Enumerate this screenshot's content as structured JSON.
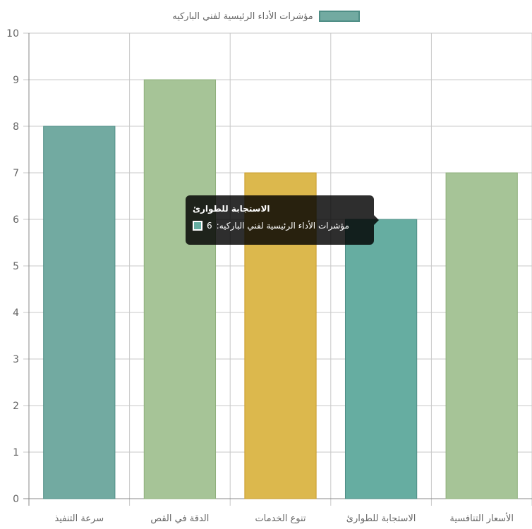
{
  "chart_data": {
    "type": "bar",
    "legend_position": "top",
    "grid": true,
    "series": [
      {
        "name": "مؤشرات الأداء الرئيسية لفني الباركيه",
        "values": [
          8,
          9,
          7,
          6,
          7
        ]
      }
    ],
    "categories": [
      "سرعة التنفيذ",
      "الدقة في القص",
      "تنوع الخدمات",
      "الاستجابة للطوارئ",
      "الأسعار التنافسية"
    ],
    "bar_colors": [
      "#72aaa1",
      "#a6c497",
      "#dcb84d",
      "#66ada1",
      "#a6c497"
    ],
    "bar_borders": [
      "#4f8e86",
      "#8fb07c",
      "#c99e2e",
      "#4f8e86",
      "#8fb07c"
    ],
    "ylim": [
      0,
      10
    ],
    "yticks": [
      0,
      1,
      2,
      3,
      4,
      5,
      6,
      7,
      8,
      9,
      10
    ],
    "xlabel": "",
    "ylabel": ""
  },
  "legend": {
    "label": "مؤشرات الأداء الرئيسية لفني الباركيه",
    "color": "#72aaa1"
  },
  "tooltip": {
    "title": "الاستجابة للطوارئ",
    "label": "مؤشرات الأداء الرئيسية لفني الباركيه",
    "value": "6",
    "swatch_color": "#66ada1"
  }
}
